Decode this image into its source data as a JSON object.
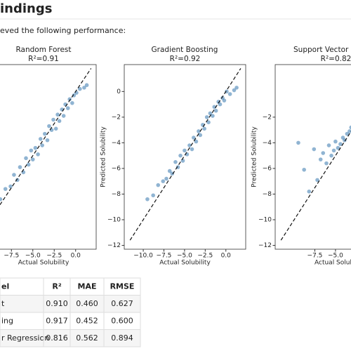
{
  "header": {
    "title": "indings"
  },
  "intro": "eved the following performance:",
  "chart_data": [
    {
      "type": "scatter",
      "title": "Random Forest",
      "subtitle": "R²=0.91",
      "x_label": "Actual Solubility",
      "color": "#4682b4",
      "xlim": [
        -9.9,
        2.4
      ],
      "ylim": [
        -12.3,
        2.1
      ],
      "xticks": [
        {
          "value": -7.5,
          "label": "−7.5"
        },
        {
          "value": -5.0,
          "label": "−5.0"
        },
        {
          "value": -2.5,
          "label": "−2.5"
        },
        {
          "value": 0,
          "label": "0.0"
        }
      ],
      "x": [
        -9.5,
        -8.8,
        -8.2,
        -7.6,
        -7.2,
        -6.8,
        -6.5,
        -6.1,
        -5.8,
        -5.5,
        -5.2,
        -5.0,
        -4.7,
        -4.4,
        -4.1,
        -3.9,
        -3.6,
        -3.3,
        -3.1,
        -2.8,
        -2.6,
        -2.3,
        -2.1,
        -1.9,
        -1.6,
        -1.4,
        -1.2,
        -0.9,
        -0.7,
        -0.4,
        -0.2,
        0.1,
        0.5,
        1.0,
        1.3
      ],
      "values": [
        -8.9,
        -8.4,
        -7.6,
        -7.4,
        -6.5,
        -6.9,
        -5.9,
        -6.3,
        -5.2,
        -5.7,
        -4.6,
        -5.3,
        -4.4,
        -4.9,
        -3.7,
        -4.2,
        -3.3,
        -3.8,
        -2.7,
        -3.0,
        -2.2,
        -2.9,
        -1.8,
        -2.3,
        -1.4,
        -1.9,
        -1.0,
        -1.3,
        -0.6,
        -0.9,
        -0.3,
        -0.1,
        0.2,
        0.3,
        0.5
      ]
    },
    {
      "type": "scatter",
      "title": "Gradient Boosting",
      "subtitle": "R²=0.92",
      "x_label": "Actual Solubility",
      "y_label": "Predicted Solubility",
      "color": "#4682b4",
      "xlim": [
        -12.3,
        2.4
      ],
      "ylim": [
        -12.3,
        2.1
      ],
      "xticks": [
        {
          "value": -10,
          "label": "−10.0"
        },
        {
          "value": -7.5,
          "label": "−7.5"
        },
        {
          "value": -5.0,
          "label": "−5.0"
        },
        {
          "value": -2.5,
          "label": "−2.5"
        },
        {
          "value": 0,
          "label": "0.0"
        }
      ],
      "yticks": [
        0,
        {
          "value": -2,
          "label": "−2"
        },
        {
          "value": -4,
          "label": "−4"
        },
        {
          "value": -6,
          "label": "−6"
        },
        {
          "value": -8,
          "label": "−8"
        },
        {
          "value": -10,
          "label": "−10"
        },
        {
          "value": -12,
          "label": "−12"
        }
      ],
      "x": [
        -9.5,
        -8.8,
        -8.2,
        -7.6,
        -7.2,
        -6.8,
        -6.5,
        -6.1,
        -5.8,
        -5.5,
        -5.2,
        -5.0,
        -4.7,
        -4.4,
        -4.1,
        -3.9,
        -3.6,
        -3.3,
        -3.1,
        -2.8,
        -2.6,
        -2.3,
        -2.1,
        -1.9,
        -1.6,
        -1.4,
        -1.2,
        -0.9,
        -0.7,
        -0.4,
        -0.2,
        0.1,
        0.5,
        1.0,
        1.3
      ],
      "values": [
        -8.4,
        -8.1,
        -7.3,
        -7.0,
        -6.8,
        -6.2,
        -6.4,
        -5.5,
        -5.9,
        -5.0,
        -5.4,
        -4.6,
        -4.9,
        -4.2,
        -4.5,
        -3.6,
        -3.9,
        -3.1,
        -3.4,
        -2.6,
        -2.9,
        -2.0,
        -2.4,
        -1.7,
        -1.9,
        -1.2,
        -1.5,
        -0.8,
        -1.0,
        -0.5,
        -0.7,
        0.0,
        -0.2,
        0.1,
        0.3
      ]
    },
    {
      "type": "scatter",
      "title": "Support Vector Re",
      "subtitle": "R²=0.82",
      "x_label": "Actual Solubili",
      "y_label": "Predicted Solubility",
      "color": "#4682b4",
      "xlim": [
        -12.3,
        2.4
      ],
      "ylim": [
        -12.3,
        2.1
      ],
      "xticks": [
        {
          "value": -7.5,
          "label": "−7.5"
        },
        {
          "value": -5.0,
          "label": "−5.0"
        }
      ],
      "yticks": [
        {
          "value": -2,
          "label": "−2"
        },
        {
          "value": -4,
          "label": "−4"
        },
        {
          "value": -6,
          "label": "−6"
        },
        {
          "value": -8,
          "label": "−8"
        },
        {
          "value": -10,
          "label": "−10"
        },
        {
          "value": -12,
          "label": "−12"
        }
      ],
      "x": [
        -9.5,
        -8.8,
        -8.2,
        -7.6,
        -7.2,
        -6.8,
        -6.5,
        -6.1,
        -5.8,
        -5.5,
        -5.2,
        -5.0,
        -4.7,
        -4.4,
        -4.1,
        -3.9,
        -3.6,
        -3.3,
        -3.1,
        -2.8,
        -2.6,
        -2.3,
        -2.1,
        -1.9,
        -1.6,
        -1.4,
        -1.2,
        -0.9,
        -0.7,
        -0.4,
        -0.2,
        0.1,
        0.5,
        1.0,
        1.3
      ],
      "values": [
        -4.0,
        -6.1,
        -7.8,
        -4.5,
        -6.9,
        -5.3,
        -4.8,
        -5.6,
        -4.2,
        -5.0,
        -4.6,
        -3.9,
        -4.4,
        -4.1,
        -3.6,
        -3.8,
        -3.3,
        -3.1,
        -2.8,
        -2.6,
        -2.4,
        -2.2,
        -1.9,
        -2.0,
        -1.7,
        -1.5,
        -1.6,
        -1.2,
        -1.0,
        -0.9,
        -0.8,
        -0.6,
        -0.4,
        -0.3,
        -0.2
      ]
    }
  ],
  "table": {
    "header": [
      "el",
      "R²",
      "MAE",
      "RMSE"
    ],
    "rows": [
      [
        "t",
        "0.910",
        "0.460",
        "0.627"
      ],
      [
        "ing",
        "0.917",
        "0.452",
        "0.600"
      ],
      [
        "r Regression",
        "0.816",
        "0.562",
        "0.894"
      ]
    ]
  }
}
